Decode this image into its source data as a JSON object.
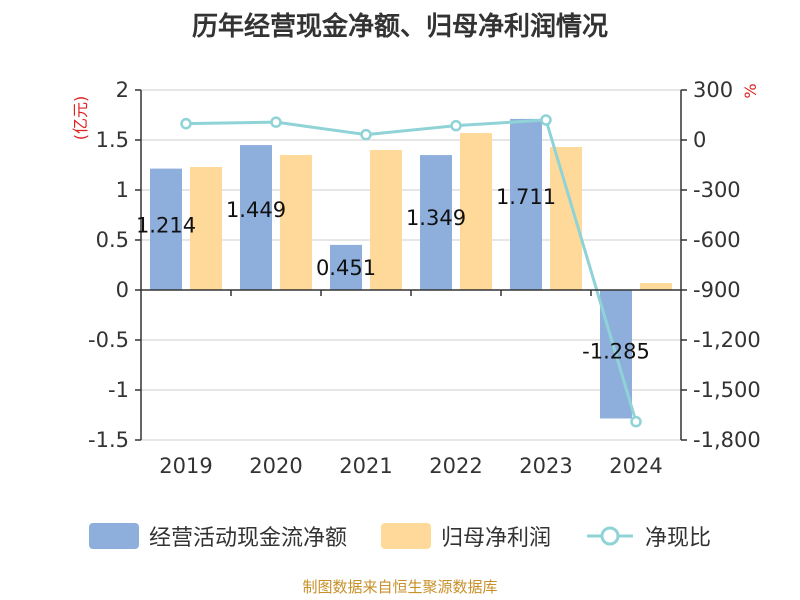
{
  "chart_data": {
    "type": "bar",
    "title": "历年经营现金净额、归母净利润情况",
    "categories": [
      "2019",
      "2020",
      "2021",
      "2022",
      "2023",
      "2024"
    ],
    "series": [
      {
        "name": "经营活动现金流净额",
        "type": "bar",
        "axis": "left",
        "color": "#8eafdc",
        "values": [
          1.214,
          1.449,
          0.451,
          1.349,
          1.711,
          -1.285
        ]
      },
      {
        "name": "归母净利润",
        "type": "bar",
        "axis": "left",
        "color": "#ffd999",
        "values": [
          1.23,
          1.35,
          1.4,
          1.57,
          1.43,
          0.07
        ]
      },
      {
        "name": "净现比",
        "type": "line",
        "axis": "right",
        "color": "#8fd3d6",
        "values": [
          98,
          107,
          32,
          86,
          120,
          -1690
        ]
      }
    ],
    "data_labels": [
      "1.214",
      "1.449",
      "0.451",
      "1.349",
      "1.711",
      "-1.285"
    ],
    "left_axis": {
      "unit": "(亿元)",
      "ylim": [
        -1.5,
        2
      ],
      "ticks": [
        2,
        1.5,
        1,
        0.5,
        0,
        -0.5,
        -1,
        -1.5
      ],
      "tick_labels": [
        "2",
        "1.5",
        "1",
        "0.5",
        "0",
        "-0.5",
        "-1",
        "-1.5"
      ]
    },
    "right_axis": {
      "unit": "%",
      "ylim": [
        -1800,
        300
      ],
      "ticks": [
        300,
        0,
        -300,
        -600,
        -900,
        -1200,
        -1500,
        -1800
      ],
      "tick_labels": [
        "300",
        "0",
        "-300",
        "-600",
        "-900",
        "-1,200",
        "-1,500",
        "-1,800"
      ]
    },
    "legend": [
      "经营活动现金流净额",
      "归母净利润",
      "净现比"
    ],
    "grid": true
  },
  "source_text": "制图数据来自恒生聚源数据库"
}
